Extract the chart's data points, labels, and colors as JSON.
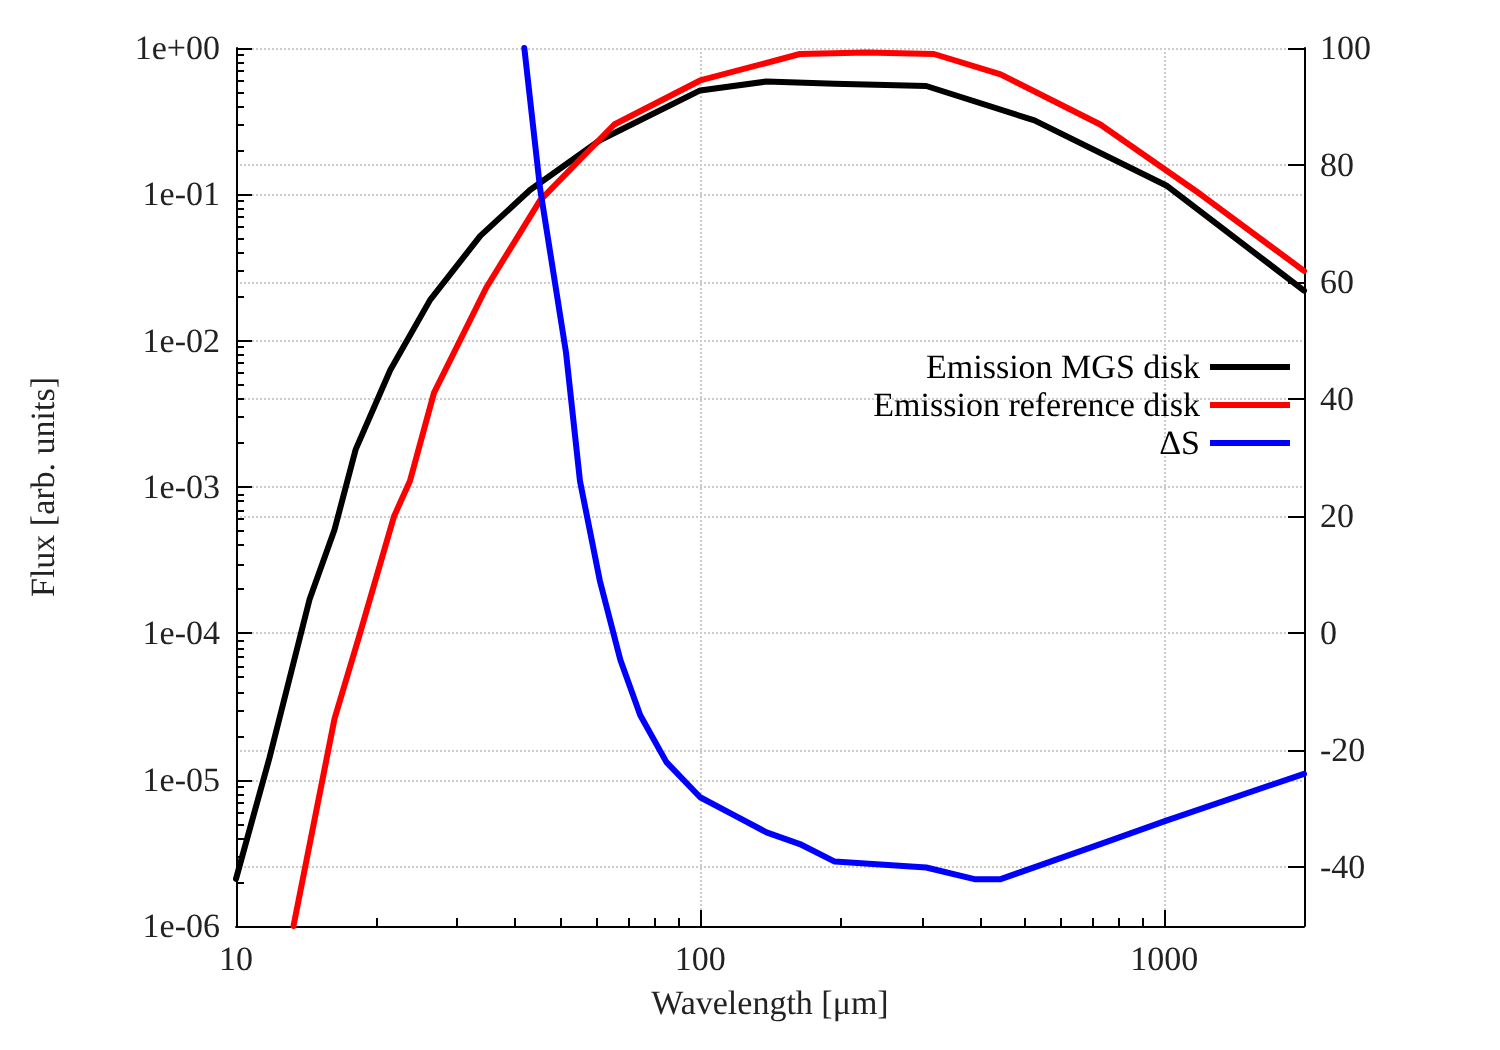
{
  "chart_data": {
    "type": "line",
    "xlabel": "Wavelength [μm]",
    "ylabel": "Flux [arb. units]",
    "log": "xy",
    "grid": true,
    "legend": "right",
    "marker": "none",
    "line_style": "solid",
    "xlim": [
      10,
      2000
    ],
    "xticks": [
      10,
      100,
      1000
    ],
    "ylim": [
      1e-06,
      1
    ],
    "yticks": [
      {
        "value": 1e-06,
        "label": "1e-06"
      },
      {
        "value": 1e-05,
        "label": "1e-05"
      },
      {
        "value": 0.0001,
        "label": "1e-04"
      },
      {
        "value": 0.001,
        "label": "1e-03"
      },
      {
        "value": 0.01,
        "label": "1e-02"
      },
      {
        "value": 0.1,
        "label": "1e-01"
      },
      {
        "value": 1,
        "label": "1e+00"
      }
    ],
    "y2lim": [
      -50,
      100
    ],
    "y2ticks": [
      -40,
      -20,
      0,
      20,
      40,
      60,
      80,
      100
    ],
    "series": [
      {
        "name": "Emission MGS disk",
        "color": "#000000",
        "x": [
          10,
          11.8,
          14.4,
          16.3,
          18.1,
          21.5,
          26.2,
          33.6,
          43,
          60.8,
          100,
          139,
          195,
          307,
          525,
          1010,
          2000
        ],
        "values": [
          2.1e-06,
          1.4e-05,
          0.00017,
          0.00051,
          0.0018,
          0.0063,
          0.019,
          0.052,
          0.107,
          0.234,
          0.513,
          0.59,
          0.57,
          0.55,
          0.32,
          0.115,
          0.022
        ]
      },
      {
        "name": "Emission reference disk",
        "color": "#ff0000",
        "x": [
          13.3,
          16.3,
          18.5,
          21.9,
          23.7,
          26.7,
          34.6,
          45.2,
          65.3,
          100,
          164,
          228,
          319,
          444,
          728,
          1197,
          2000
        ],
        "values": [
          1e-06,
          2.6e-05,
          0.0001,
          0.00063,
          0.0011,
          0.0044,
          0.023,
          0.091,
          0.3,
          0.6,
          0.91,
          0.93,
          0.91,
          0.66,
          0.3,
          0.1,
          0.03
        ]
      },
      {
        "name": "ΔS",
        "color": "#0000ff",
        "axis": "y2",
        "x": [
          41.8,
          45.2,
          51.4,
          55.1,
          60.8,
          67.3,
          74.3,
          84.6,
          100,
          118,
          139,
          164,
          195,
          307,
          390,
          444,
          728,
          1010,
          2000
        ],
        "values": [
          100,
          76,
          48,
          26,
          9,
          -4.5,
          -14,
          -22,
          -28,
          -31,
          -34,
          -36,
          -39,
          -40,
          -42,
          -42,
          -36,
          -32,
          -24
        ]
      }
    ]
  }
}
